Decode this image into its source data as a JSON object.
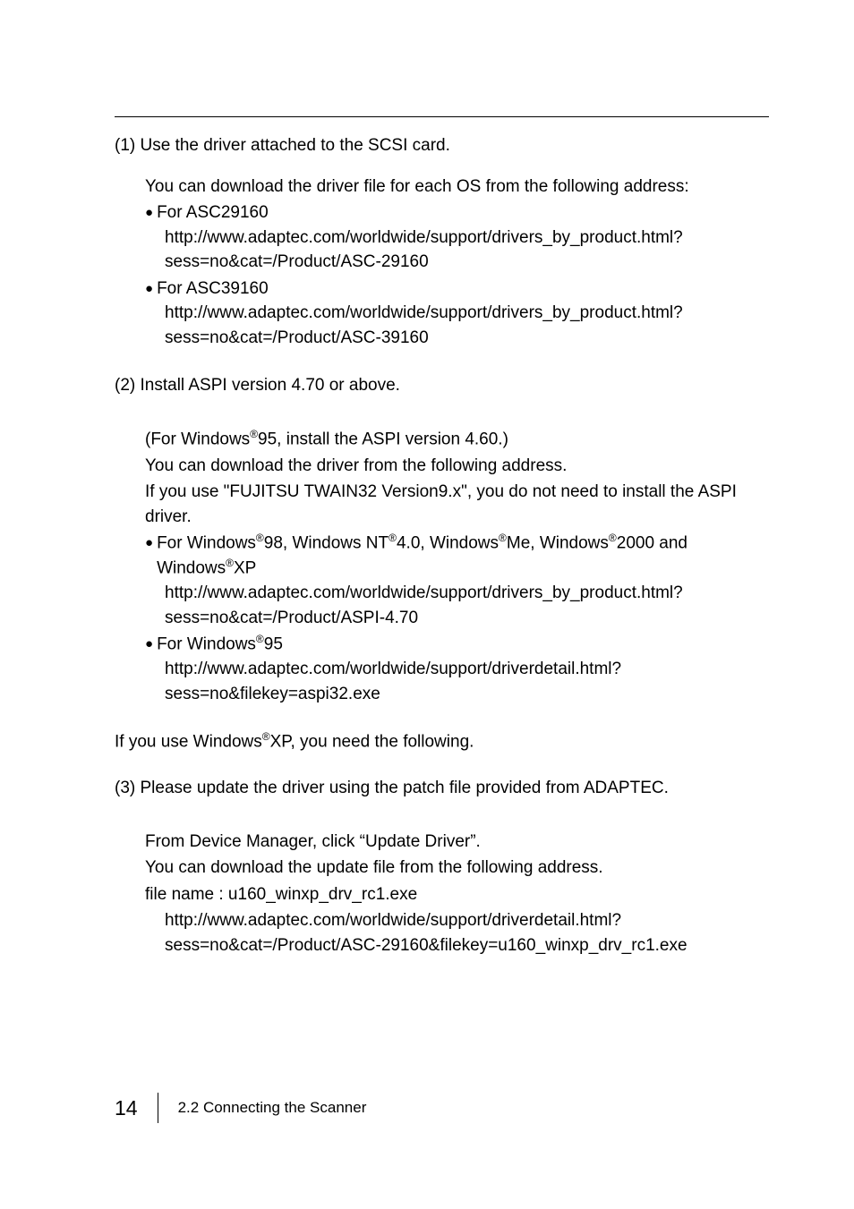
{
  "step1": {
    "heading": "(1) Use the driver attached to the SCSI card.",
    "intro": "You can download the driver file for each OS from the following address:",
    "bullets": [
      {
        "label": "For ASC29160",
        "url": "http://www.adaptec.com/worldwide/support/drivers_by_product.html?sess=no&cat=/Product/ASC-29160"
      },
      {
        "label": "For ASC39160",
        "url": "http://www.adaptec.com/worldwide/support/drivers_by_product.html?sess=no&cat=/Product/ASC-39160"
      }
    ]
  },
  "step2": {
    "heading": "(2) Install ASPI version 4.70 or above.",
    "line1_pre": "(For Windows",
    "line1_post": "95, install the ASPI version 4.60.)",
    "line2": "You can download the driver from the following address.",
    "line3": "If you use \"FUJITSU TWAIN32 Version9.x\", you do not need to install the ASPI driver.",
    "bullet1": {
      "p": {
        "s1": "For Windows",
        "s2": "98, Windows NT",
        "s3": "4.0, Windows",
        "s4": "Me, Windows",
        "s5": "2000 and Windows",
        "s6": "XP"
      },
      "url": "http://www.adaptec.com/worldwide/support/drivers_by_product.html?sess=no&cat=/Product/ASPI-4.70"
    },
    "bullet2": {
      "p": {
        "s1": "For Windows",
        "s2": "95"
      },
      "url": "http://www.adaptec.com/worldwide/support/driverdetail.html?sess=no&filekey=aspi32.exe"
    }
  },
  "xp_line": {
    "pre": "If you use Windows",
    "post": "XP, you need the following."
  },
  "step3": {
    "heading": "(3) Please update the driver using the patch file provided from ADAPTEC.",
    "l1": "From Device Manager, click “Update Driver”.",
    "l2": "You can download the update file from the following address.",
    "l3": "file name : u160_winxp_drv_rc1.exe",
    "url": "http://www.adaptec.com/worldwide/support/driverdetail.html?sess=no&cat=/Product/ASC-29160&filekey=u160_winxp_drv_rc1.exe"
  },
  "footer": {
    "page": "14",
    "section": "2.2 Connecting the Scanner"
  },
  "glyphs": {
    "bullet": "●",
    "reg": "®"
  }
}
